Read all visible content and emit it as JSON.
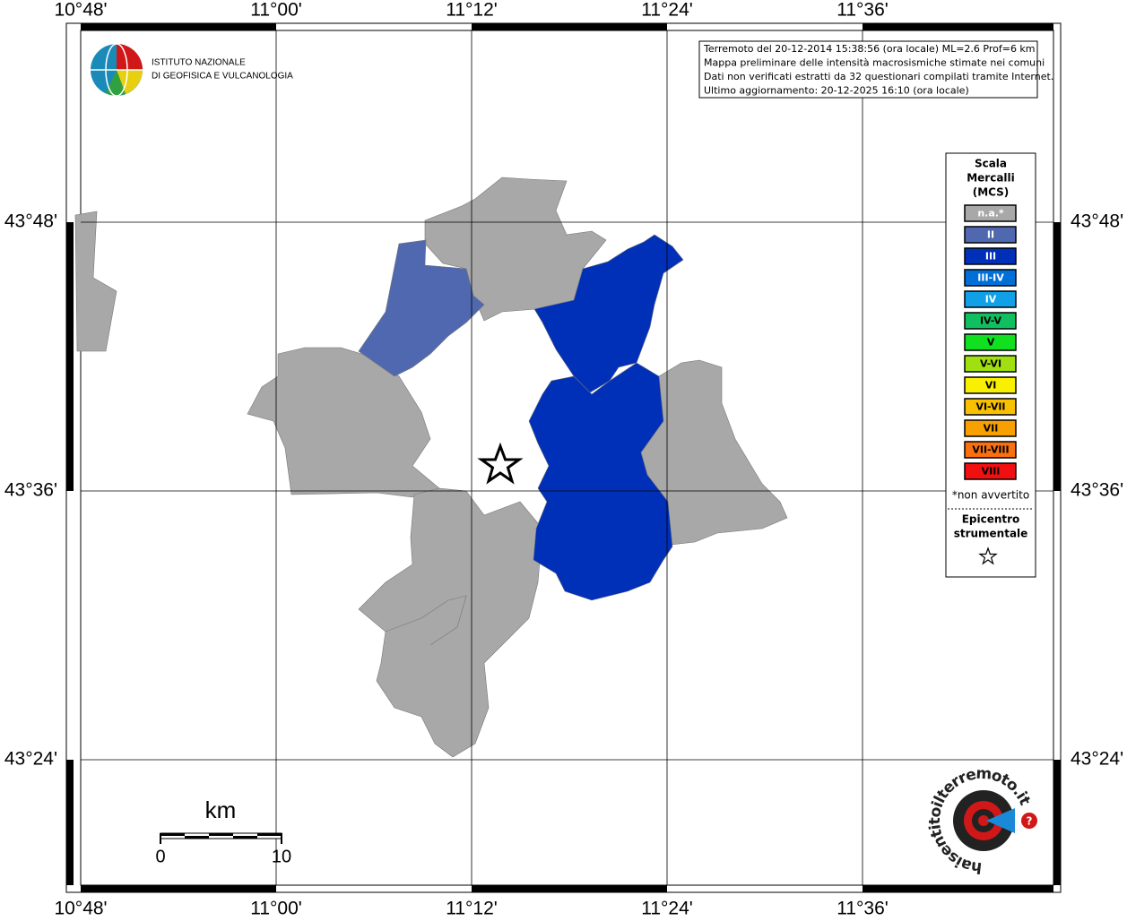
{
  "header": {
    "institute": [
      "ISTITUTO NAZIONALE",
      "DI GEOFISICA E VULCANOLOGIA"
    ]
  },
  "info": [
    "Terremoto del 20-12-2014 15:38:56 (ora locale) ML=2.6 Prof=6 km",
    "Mappa preliminare delle intensità macrosismiche stimate nei comuni",
    "Dati non verificati estratti da 32 questionari compilati tramite Internet.",
    "Ultimo aggiornamento: 20-12-2025 16:10 (ora locale)"
  ],
  "axes": {
    "longitude": [
      "10°48'",
      "11°00'",
      "11°12'",
      "11°24'",
      "11°36'"
    ],
    "latitude": [
      "43°48'",
      "43°36'",
      "43°24'"
    ]
  },
  "legend": {
    "title": [
      "Scala",
      "Mercalli",
      "(MCS)"
    ],
    "items": [
      {
        "label": "n.a.*",
        "color": "#a8a8a8"
      },
      {
        "label": "II",
        "color": "#5068b0"
      },
      {
        "label": "III",
        "color": "#0030b8"
      },
      {
        "label": "III-IV",
        "color": "#0070d8"
      },
      {
        "label": "IV",
        "color": "#10a0e8"
      },
      {
        "label": "IV-V",
        "color": "#10c060"
      },
      {
        "label": "V",
        "color": "#10e020"
      },
      {
        "label": "V-VI",
        "color": "#a0e010"
      },
      {
        "label": "VI",
        "color": "#f8f000"
      },
      {
        "label": "VI-VII",
        "color": "#f8c000"
      },
      {
        "label": "VII",
        "color": "#f8a000"
      },
      {
        "label": "VII-VIII",
        "color": "#f87010"
      },
      {
        "label": "VIII",
        "color": "#f01010"
      }
    ],
    "note": "*non avvertito",
    "epicenter": [
      "Epicentro",
      "strumentale"
    ]
  },
  "scale_bar": {
    "unit": "km",
    "labels": [
      "0",
      "10"
    ]
  },
  "logo": {
    "text": "haisentitoilterremoto.it",
    "mark": "?"
  }
}
